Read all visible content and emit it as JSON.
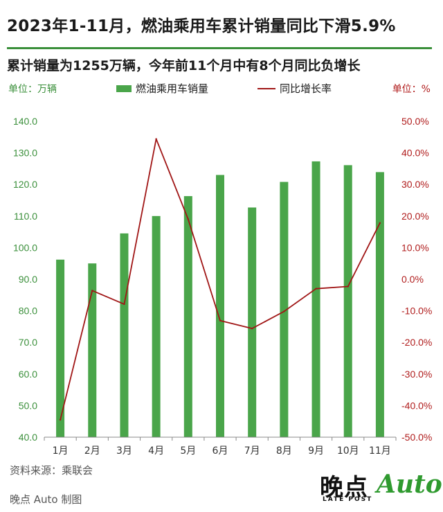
{
  "header": {
    "title": "2023年1-11月，燃油乘用车累计销量同比下滑5.9%",
    "subtitle": "累计销量为1255万辆，今年前11个月中有8个月同比负增长"
  },
  "units": {
    "left": "单位：万辆",
    "right": "单位：%"
  },
  "legend": {
    "bar": "燃油乘用车销量",
    "line": "同比增长率"
  },
  "colors": {
    "bar": "#4aa54a",
    "line": "#a01515",
    "axis_left": "#3a8f3a",
    "axis_right": "#b01c1c",
    "rule": "#3a8f3a"
  },
  "chart_data": {
    "type": "bar",
    "categories": [
      "1月",
      "2月",
      "3月",
      "4月",
      "5月",
      "6月",
      "7月",
      "8月",
      "9月",
      "10月",
      "11月"
    ],
    "series": [
      {
        "name": "燃油乘用车销量",
        "type": "bar",
        "axis": "left",
        "values": [
          96.2,
          95.0,
          104.5,
          110.0,
          116.3,
          123.0,
          112.7,
          120.8,
          127.3,
          126.1,
          123.9
        ]
      },
      {
        "name": "同比增长率",
        "type": "line",
        "axis": "right",
        "values": [
          -44.5,
          -3.6,
          -7.9,
          44.4,
          19.0,
          -13.1,
          -15.6,
          -10.2,
          -3.0,
          -2.3,
          17.8
        ]
      }
    ],
    "ylim_left": [
      40,
      140
    ],
    "yticks_left": [
      "140.0",
      "130.0",
      "120.0",
      "110.0",
      "100.0",
      "90.0",
      "80.0",
      "70.0",
      "60.0",
      "50.0",
      "40.0"
    ],
    "ylim_right": [
      -50,
      50
    ],
    "yticks_right": [
      "50.0%",
      "40.0%",
      "30.0%",
      "20.0%",
      "10.0%",
      "0.0%",
      "-10.0%",
      "-20.0%",
      "-30.0%",
      "-40.0%",
      "-50.0%"
    ],
    "grid": false
  },
  "footer": {
    "source": "资料来源：乘联会",
    "credit": "晚点 Auto 制图"
  },
  "logo": {
    "cn": "晚点",
    "en": "LATE POST",
    "auto": "Auto"
  }
}
